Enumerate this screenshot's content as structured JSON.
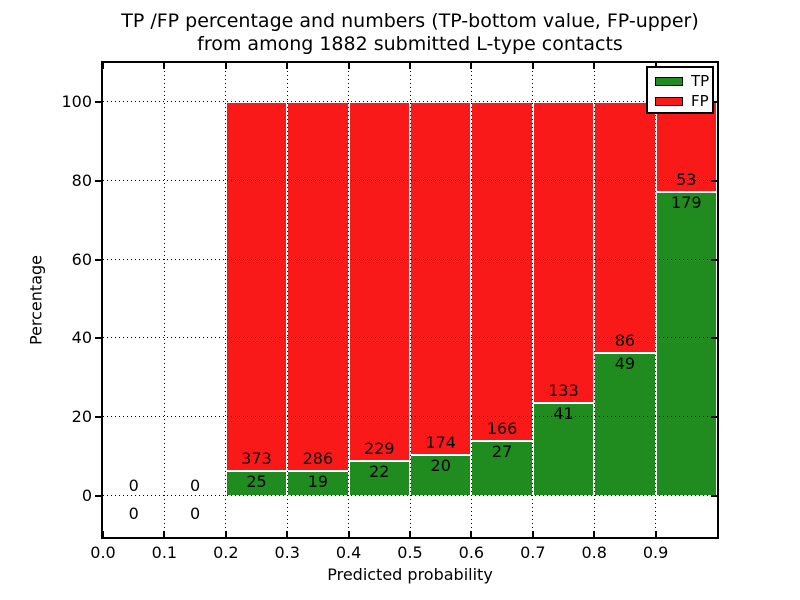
{
  "title": {
    "line1": "TP /FP percentage and numbers (TP-bottom value, FP-upper)",
    "line2": "from among 1882 submitted L-type contacts"
  },
  "colors": {
    "tp_green": "#208c20",
    "fp_red": "#fa1919",
    "grid": "#000000",
    "frame": "#000000",
    "background": "#ffffff"
  },
  "legend": {
    "position": "upper-right",
    "entries": [
      {
        "label": "TP",
        "color": "#208c20"
      },
      {
        "label": "FP",
        "color": "#fa1919"
      }
    ]
  },
  "chart_data": {
    "type": "bar",
    "variant": "stacked-percentage-histogram",
    "title": "TP /FP percentage and numbers (TP-bottom value, FP-upper) from among 1882 submitted L-type contacts",
    "xlabel": "Predicted probability",
    "ylabel": "Percentage",
    "xlim": [
      0.0,
      1.0
    ],
    "ylim": [
      -10.5,
      110
    ],
    "grid": "dotted",
    "legend_position": "upper-right",
    "bin_width": 0.1,
    "series_names": [
      "TP",
      "FP"
    ],
    "x_ticks": {
      "values": [
        0.0,
        0.1,
        0.2,
        0.3,
        0.4,
        0.5,
        0.6,
        0.7,
        0.8,
        0.9
      ],
      "labels": [
        "0.0",
        "0.1",
        "0.2",
        "0.3",
        "0.4",
        "0.5",
        "0.6",
        "0.7",
        "0.8",
        "0.9"
      ]
    },
    "y_ticks": {
      "values": [
        0,
        20,
        40,
        60,
        80,
        100
      ],
      "labels": [
        "0",
        "20",
        "40",
        "60",
        "80",
        "100"
      ]
    },
    "bins": [
      {
        "x_start": 0.0,
        "tp": 0,
        "fp": 0
      },
      {
        "x_start": 0.1,
        "tp": 0,
        "fp": 0
      },
      {
        "x_start": 0.2,
        "tp": 25,
        "fp": 373
      },
      {
        "x_start": 0.3,
        "tp": 19,
        "fp": 286
      },
      {
        "x_start": 0.4,
        "tp": 22,
        "fp": 229
      },
      {
        "x_start": 0.5,
        "tp": 20,
        "fp": 174
      },
      {
        "x_start": 0.6,
        "tp": 27,
        "fp": 166
      },
      {
        "x_start": 0.7,
        "tp": 41,
        "fp": 133
      },
      {
        "x_start": 0.8,
        "tp": 49,
        "fp": 86
      },
      {
        "x_start": 0.9,
        "tp": 179,
        "fp": 53
      }
    ],
    "bars_normalized_to": 100,
    "total_submitted": 1882
  }
}
